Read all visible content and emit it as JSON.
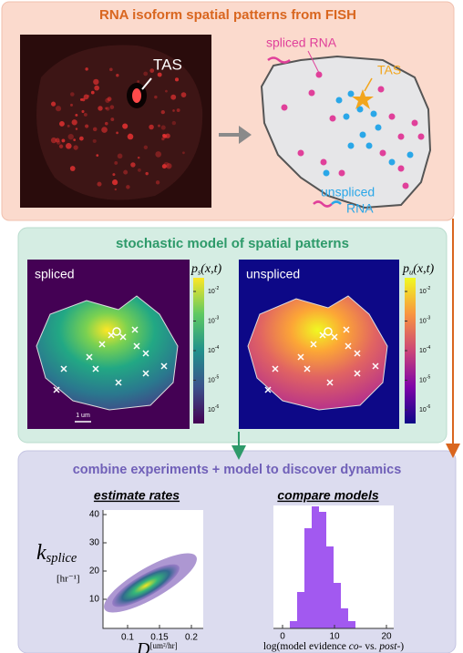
{
  "panel1": {
    "title": "RNA isoform spatial patterns from FISH",
    "image_label": "TAS",
    "spliced_label": "spliced RNA",
    "tas_label": "TAS",
    "unspliced_label": [
      "unspliced",
      "RNA"
    ]
  },
  "panel2": {
    "title": "stochastic model of spatial patterns",
    "left": {
      "label": "spliced",
      "colorbar_label": {
        "symbol": "p",
        "subscript": "s",
        "args": "(x,t)"
      },
      "colorbar_ticks": [
        {
          "base": "10",
          "exp": "-2"
        },
        {
          "base": "10",
          "exp": "-3"
        },
        {
          "base": "10",
          "exp": "-4"
        },
        {
          "base": "10",
          "exp": "-5"
        },
        {
          "base": "10",
          "exp": "-6"
        }
      ],
      "scale_bar": "1 um"
    },
    "right": {
      "label": "unspliced",
      "colorbar_label": {
        "symbol": "p",
        "subscript": "u",
        "args": "(x,t)"
      },
      "colorbar_ticks": [
        {
          "base": "10",
          "exp": "-2"
        },
        {
          "base": "10",
          "exp": "-3"
        },
        {
          "base": "10",
          "exp": "-4"
        },
        {
          "base": "10",
          "exp": "-5"
        },
        {
          "base": "10",
          "exp": "-6"
        }
      ]
    }
  },
  "panel3": {
    "title": "combine experiments + model to discover dynamics",
    "left": {
      "title": "estimate rates",
      "y_label": {
        "symbol": "k",
        "subscript": "splice",
        "unit": "[hr⁻¹]"
      },
      "yticks": [
        "10",
        "20",
        "30",
        "40"
      ],
      "xticks": [
        "0.1",
        "0.15",
        "0.2"
      ],
      "x_label": {
        "symbol": "D",
        "unit": "[um²/hr]"
      }
    },
    "right": {
      "title": "compare models",
      "xticks": [
        "0",
        "10",
        "20"
      ],
      "x_label": [
        "log(model evidence ",
        "co-",
        " vs. ",
        "post-",
        ")"
      ]
    }
  }
}
